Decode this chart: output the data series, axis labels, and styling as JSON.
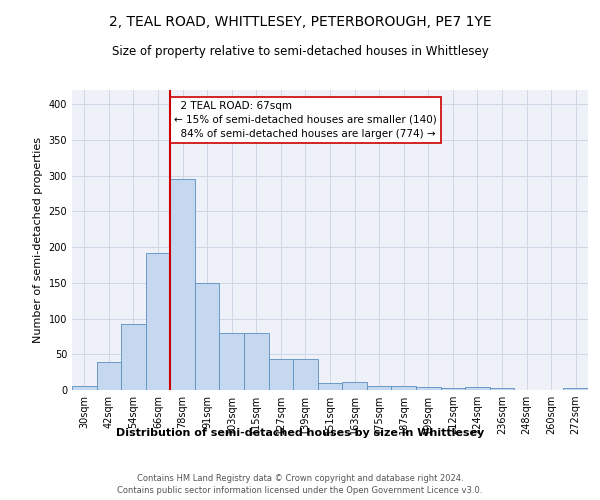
{
  "title": "2, TEAL ROAD, WHITTLESEY, PETERBOROUGH, PE7 1YE",
  "subtitle": "Size of property relative to semi-detached houses in Whittlesey",
  "xlabel": "Distribution of semi-detached houses by size in Whittlesey",
  "ylabel": "Number of semi-detached properties",
  "categories": [
    "30sqm",
    "42sqm",
    "54sqm",
    "66sqm",
    "78sqm",
    "91sqm",
    "103sqm",
    "115sqm",
    "127sqm",
    "139sqm",
    "151sqm",
    "163sqm",
    "175sqm",
    "187sqm",
    "199sqm",
    "212sqm",
    "224sqm",
    "236sqm",
    "248sqm",
    "260sqm",
    "272sqm"
  ],
  "values": [
    6,
    39,
    93,
    192,
    295,
    150,
    80,
    80,
    44,
    44,
    10,
    11,
    5,
    6,
    4,
    3,
    4,
    3,
    0,
    0,
    3
  ],
  "bar_color": "#c5d8f0",
  "bar_edge_color": "#5a8fc0",
  "property_line_x": 3.5,
  "property_size": "67sqm",
  "pct_smaller": 15,
  "count_smaller": 140,
  "pct_larger": 84,
  "count_larger": 774,
  "annotation_box_color": "#ffffff",
  "annotation_box_edge": "#cc0000",
  "line_color": "#cc0000",
  "grid_color": "#d0d8e8",
  "background_color": "#eef2f8",
  "footer1": "Contains HM Land Registry data © Crown copyright and database right 2024.",
  "footer2": "Contains public sector information licensed under the Open Government Licence v3.0.",
  "ylim": [
    0,
    420
  ],
  "title_fontsize": 10,
  "subtitle_fontsize": 8.5,
  "axis_label_fontsize": 8,
  "tick_fontsize": 7,
  "footer_fontsize": 6,
  "annotation_fontsize": 7.5
}
